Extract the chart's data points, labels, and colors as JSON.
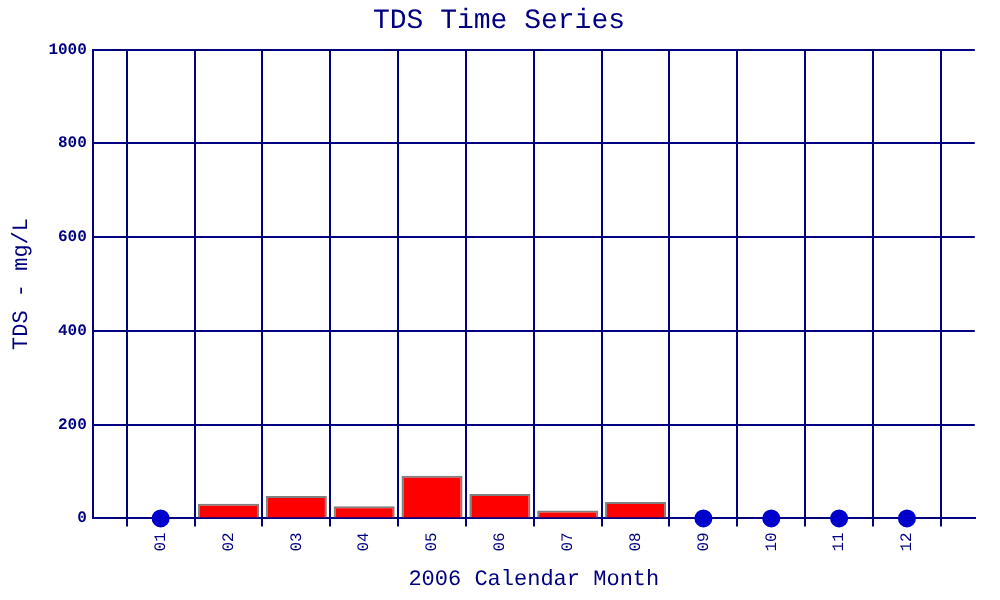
{
  "chart_data": {
    "type": "bar",
    "title": "TDS Time Series",
    "xlabel": "2006 Calendar Month",
    "ylabel": "TDS - mg/L",
    "categories": [
      "01",
      "02",
      "03",
      "04",
      "05",
      "06",
      "07",
      "08",
      "09",
      "10",
      "11",
      "12"
    ],
    "series": [
      {
        "color": "#ff0000",
        "values": [
          null,
          31,
          48,
          26,
          91,
          52,
          17,
          35,
          null,
          null,
          null,
          null
        ]
      },
      {
        "type": "scatter",
        "color": "#0000cc",
        "marker": "circle",
        "values": [
          0,
          null,
          null,
          null,
          null,
          null,
          null,
          null,
          0,
          0,
          0,
          0
        ]
      }
    ],
    "ylim": [
      0,
      1000
    ],
    "yticks": [
      0,
      200,
      400,
      600,
      800,
      1000
    ],
    "grid": true,
    "legend": false
  }
}
